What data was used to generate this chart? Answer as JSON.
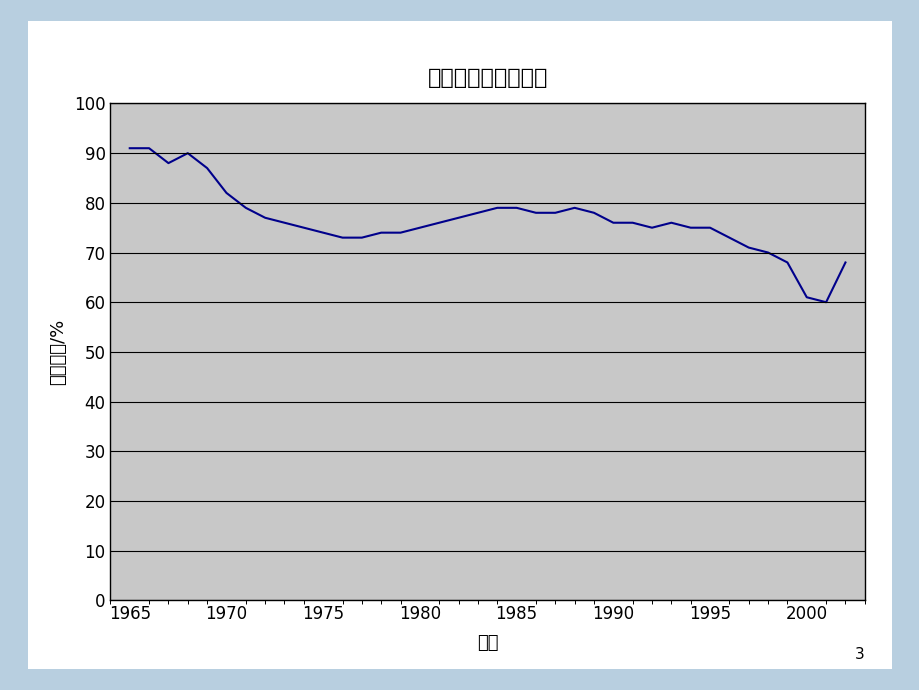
{
  "title": "煤炭在总能源中比例",
  "xlabel": "年份",
  "ylabel": "煤炭比例/%",
  "outer_bg_color": "#b8cfe0",
  "inner_bg_color": "#ffffff",
  "plot_bg_color": "#c8c8c8",
  "line_color": "#00008B",
  "xlim": [
    1964.5,
    2003
  ],
  "ylim": [
    0,
    100
  ],
  "xticks": [
    1965,
    1970,
    1975,
    1980,
    1985,
    1990,
    1995,
    2000
  ],
  "yticks": [
    0,
    10,
    20,
    30,
    40,
    50,
    60,
    70,
    80,
    90,
    100
  ],
  "years": [
    1965,
    1966,
    1967,
    1968,
    1969,
    1970,
    1971,
    1972,
    1973,
    1974,
    1975,
    1976,
    1977,
    1978,
    1979,
    1980,
    1981,
    1982,
    1983,
    1984,
    1985,
    1986,
    1987,
    1988,
    1989,
    1990,
    1991,
    1992,
    1993,
    1994,
    1995,
    1996,
    1997,
    1998,
    1999,
    2000,
    2001,
    2002
  ],
  "values": [
    91,
    91,
    88,
    90,
    87,
    82,
    79,
    77,
    76,
    75,
    74,
    73,
    73,
    74,
    74,
    75,
    76,
    77,
    78,
    79,
    79,
    78,
    78,
    79,
    78,
    76,
    76,
    75,
    76,
    75,
    75,
    73,
    71,
    70,
    68,
    61,
    60,
    68
  ],
  "page_number": "3",
  "title_fontsize": 16,
  "axis_label_fontsize": 13,
  "tick_fontsize": 12
}
